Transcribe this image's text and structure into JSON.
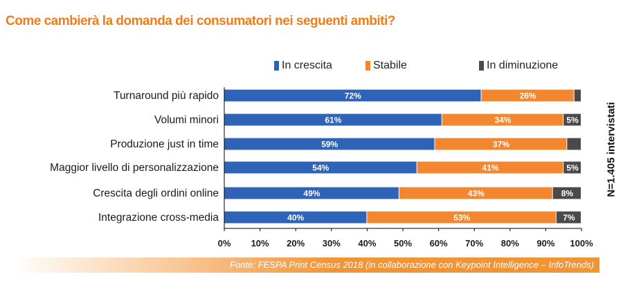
{
  "chart_data": {
    "type": "bar",
    "orientation": "horizontal",
    "stacked": true,
    "title": "Come cambierà la domanda dei consumatori nei seguenti ambiti?",
    "categories": [
      "Turnaround più rapido",
      "Volumi minori",
      "Produzione just in time",
      "Maggior livello di personalizzazione",
      "Crescita degli ordini online",
      "Integrazione cross-media"
    ],
    "series": [
      {
        "name": "In crescita",
        "color": "#2e63b8",
        "values": [
          72,
          61,
          59,
          54,
          49,
          40
        ],
        "labels": [
          "72%",
          "61%",
          "59%",
          "54%",
          "49%",
          "40%"
        ]
      },
      {
        "name": "Stabile",
        "color": "#f2872f",
        "values": [
          26,
          34,
          37,
          41,
          43,
          53
        ],
        "labels": [
          "26%",
          "34%",
          "37%",
          "41%",
          "43%",
          "53%"
        ]
      },
      {
        "name": "In diminuzione",
        "color": "#4a4a4a",
        "values": [
          2,
          5,
          4,
          5,
          8,
          7
        ],
        "labels": [
          "",
          "5%",
          "",
          "5%",
          "8%",
          "7%"
        ]
      }
    ],
    "x_ticks": [
      "0%",
      "10%",
      "20%",
      "30%",
      "40%",
      "50%",
      "60%",
      "70%",
      "80%",
      "90%",
      "100%"
    ],
    "xlim": [
      0,
      100
    ],
    "grid": false,
    "legend_position": "top"
  },
  "side_note": "N=1.405 intervistati",
  "source": "Fonte: FESPA Print Census 2018 (in collaborazione con Keypoint Intelligence – InfoTrends)",
  "colors": {
    "title": "#ef7d1a",
    "axis": "#000000",
    "source_gradient_end": "#f29334"
  }
}
